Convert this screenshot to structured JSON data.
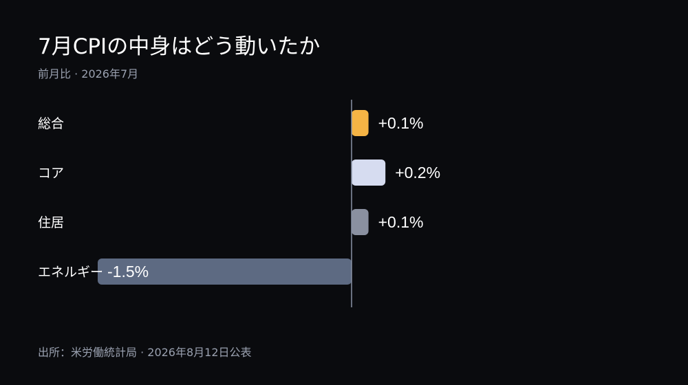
{
  "title": "7月CPIの中身はどう動いたか",
  "subtitle": "前月比 · 2026年7月",
  "source": "出所：米労働統計局 · 2026年8月12日公表",
  "colors": {
    "background": "#0a0b0e",
    "axis": "#8a93a6",
    "total": "#f5b445",
    "core": "#d6dcf0",
    "shelter": "#8a90a0",
    "energy": "#5d6a82"
  },
  "chart_data": {
    "type": "bar",
    "orientation": "horizontal",
    "categories": [
      "総合",
      "コア",
      "住居",
      "エネルギー"
    ],
    "values": [
      0.1,
      0.2,
      0.1,
      -1.5
    ],
    "value_labels": [
      "+0.1%",
      "+0.2%",
      "+0.1%",
      "-1.5%"
    ],
    "bar_colors": [
      "#f5b445",
      "#d6dcf0",
      "#8a90a0",
      "#5d6a82"
    ],
    "title": "7月CPIの中身はどう動いたか",
    "xlabel": "",
    "ylabel": "",
    "grid": false
  }
}
